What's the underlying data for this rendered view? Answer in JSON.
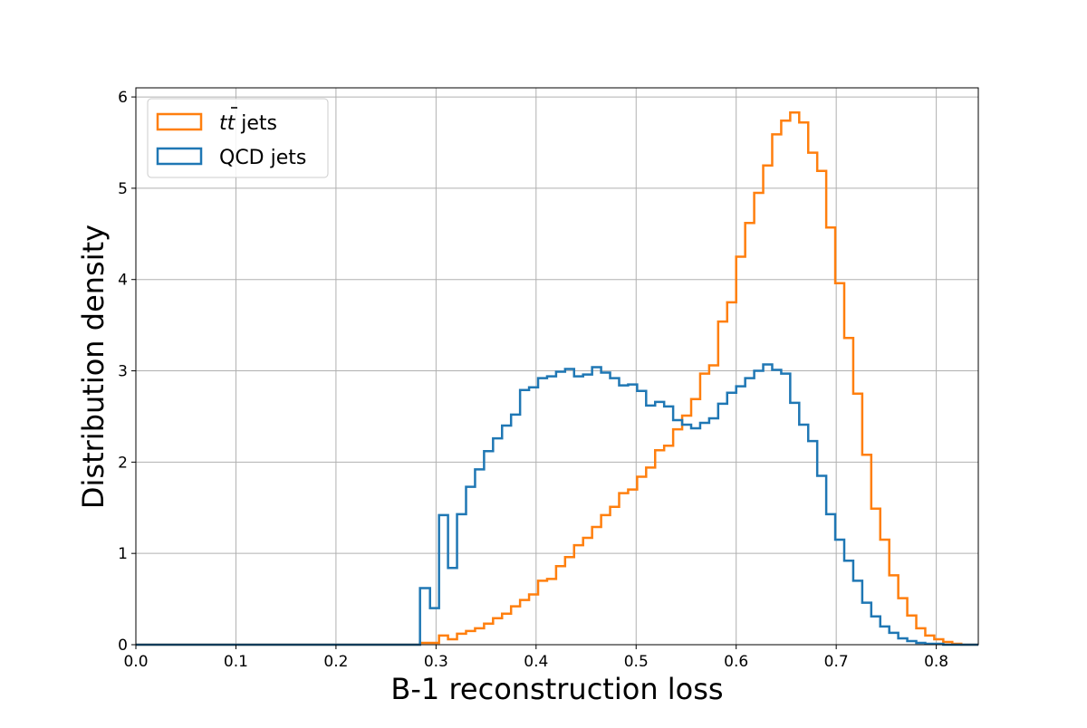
{
  "chart_data": {
    "type": "histogram",
    "xlabel": "B-1 reconstruction loss",
    "ylabel": "Distribution density",
    "xlim": [
      0.0,
      0.842
    ],
    "ylim": [
      0,
      6.1
    ],
    "x_ticks": [
      "0.0",
      "0.1",
      "0.2",
      "0.3",
      "0.4",
      "0.5",
      "0.6",
      "0.7",
      "0.8"
    ],
    "y_ticks": [
      "0",
      "1",
      "2",
      "3",
      "4",
      "5",
      "6"
    ],
    "grid": true,
    "legend_position": "top-left",
    "series": [
      {
        "name": "tt̄ jets",
        "legend_label_main": "tt",
        "legend_label_suffix": " jets",
        "color": "#ff7f0e",
        "edges": [
          0.284,
          0.294,
          0.303,
          0.312,
          0.321,
          0.33,
          0.339,
          0.348,
          0.357,
          0.366,
          0.375,
          0.384,
          0.393,
          0.402,
          0.411,
          0.42,
          0.429,
          0.438,
          0.447,
          0.456,
          0.465,
          0.474,
          0.483,
          0.492,
          0.501,
          0.51,
          0.519,
          0.528,
          0.537,
          0.546,
          0.555,
          0.564,
          0.573,
          0.582,
          0.591,
          0.6,
          0.609,
          0.618,
          0.627,
          0.636,
          0.645,
          0.654,
          0.663,
          0.672,
          0.681,
          0.69,
          0.699,
          0.708,
          0.717,
          0.726,
          0.735,
          0.744,
          0.753,
          0.762,
          0.771,
          0.78,
          0.789,
          0.798,
          0.807,
          0.816,
          0.825
        ],
        "values": [
          0.02,
          0.02,
          0.1,
          0.06,
          0.12,
          0.15,
          0.18,
          0.23,
          0.29,
          0.34,
          0.42,
          0.49,
          0.55,
          0.7,
          0.72,
          0.86,
          0.96,
          1.09,
          1.17,
          1.29,
          1.42,
          1.51,
          1.66,
          1.7,
          1.84,
          1.94,
          2.13,
          2.18,
          2.36,
          2.51,
          2.69,
          2.97,
          3.06,
          3.54,
          3.75,
          4.25,
          4.62,
          4.95,
          5.25,
          5.59,
          5.74,
          5.83,
          5.72,
          5.39,
          5.19,
          4.57,
          3.96,
          3.36,
          2.75,
          2.08,
          1.49,
          1.15,
          0.76,
          0.51,
          0.32,
          0.18,
          0.1,
          0.06,
          0.03,
          0.01
        ]
      },
      {
        "name": "QCD jets",
        "color": "#1f77b4",
        "edges": [
          0.284,
          0.294,
          0.303,
          0.312,
          0.321,
          0.33,
          0.339,
          0.348,
          0.357,
          0.366,
          0.375,
          0.384,
          0.393,
          0.402,
          0.411,
          0.42,
          0.429,
          0.438,
          0.447,
          0.456,
          0.465,
          0.474,
          0.483,
          0.492,
          0.501,
          0.51,
          0.519,
          0.528,
          0.537,
          0.546,
          0.555,
          0.564,
          0.573,
          0.582,
          0.591,
          0.6,
          0.609,
          0.618,
          0.627,
          0.636,
          0.645,
          0.654,
          0.663,
          0.672,
          0.681,
          0.69,
          0.699,
          0.708,
          0.717,
          0.726,
          0.735,
          0.744,
          0.753,
          0.762,
          0.771,
          0.78,
          0.789,
          0.798,
          0.807,
          0.816,
          0.825
        ],
        "values": [
          0.62,
          0.4,
          1.42,
          0.84,
          1.43,
          1.73,
          1.92,
          2.12,
          2.26,
          2.4,
          2.52,
          2.79,
          2.82,
          2.92,
          2.94,
          2.99,
          3.02,
          2.94,
          2.96,
          3.04,
          2.98,
          2.92,
          2.84,
          2.85,
          2.78,
          2.62,
          2.66,
          2.61,
          2.46,
          2.41,
          2.37,
          2.43,
          2.48,
          2.64,
          2.76,
          2.83,
          2.92,
          3.0,
          3.07,
          3.01,
          2.97,
          2.65,
          2.41,
          2.23,
          1.85,
          1.43,
          1.15,
          0.92,
          0.7,
          0.46,
          0.31,
          0.2,
          0.13,
          0.07,
          0.04,
          0.02,
          0.01,
          0.01,
          0.0,
          0.0
        ]
      }
    ]
  }
}
